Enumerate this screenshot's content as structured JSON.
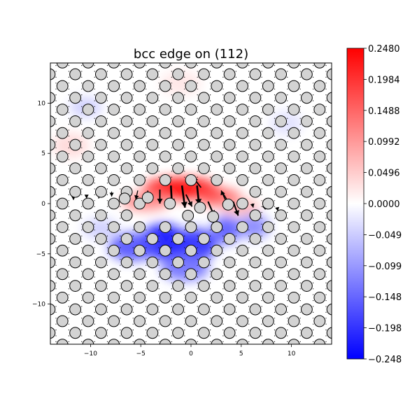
{
  "chart_data": {
    "type": "heatmap",
    "title": "bcc edge on (112)",
    "xlabel": "",
    "ylabel": "",
    "xlim": [
      -14,
      14
    ],
    "ylim": [
      -14,
      14
    ],
    "x_ticks": [
      -10,
      -5,
      0,
      5,
      10
    ],
    "y_ticks": [
      -10,
      -5,
      0,
      5,
      10
    ],
    "x_tick_labels": [
      "−10",
      "−5",
      "0",
      "5",
      "10"
    ],
    "y_tick_labels": [
      "−10",
      "−5",
      "0",
      "5",
      "10"
    ],
    "colorbar": {
      "colormap": "bwr",
      "vmin": -0.248,
      "vmax": 0.248,
      "ticks": [
        0.248,
        0.1984,
        0.1488,
        0.0992,
        0.0496,
        0.0,
        -0.0496,
        -0.0992,
        -0.1488,
        -0.1984,
        -0.248
      ],
      "tick_labels": [
        "0.2480",
        "0.1984",
        "0.1488",
        "0.0992",
        "0.0496",
        "0.0000",
        "−0.049",
        "−0.099",
        "−0.148",
        "−0.198",
        "−0.248"
      ]
    },
    "lattice": {
      "dx": 2.56,
      "dy": 1.17,
      "offset_x": 1.28,
      "atom_radius": 0.55,
      "atom_fill": "#d3d3d3",
      "atom_edge": "#000000"
    },
    "displaced_atoms": [
      {
        "x": -6.6,
        "y": 0.5
      },
      {
        "x": -4.3,
        "y": 0.6
      },
      {
        "x": -2.1,
        "y": 0.0
      },
      {
        "x": -0.3,
        "y": -1.2
      },
      {
        "x": 0.9,
        "y": -0.4
      },
      {
        "x": 2.2,
        "y": -1.3
      },
      {
        "x": 3.7,
        "y": -0.1
      }
    ],
    "strain_regions": [
      {
        "x": -1.0,
        "y": 1.5,
        "sx": 3.8,
        "sy": 1.1,
        "value": 0.248
      },
      {
        "x": 2.8,
        "y": 0.6,
        "sx": 2.2,
        "sy": 0.9,
        "value": 0.17
      },
      {
        "x": -4.5,
        "y": 0.2,
        "sx": 2.4,
        "sy": 0.9,
        "value": 0.12
      },
      {
        "x": 4.8,
        "y": -0.3,
        "sx": 2.0,
        "sy": 0.8,
        "value": 0.08
      },
      {
        "x": -2.8,
        "y": -3.8,
        "sx": 2.2,
        "sy": 1.8,
        "value": -0.23
      },
      {
        "x": 0.4,
        "y": -4.1,
        "sx": 2.2,
        "sy": 1.6,
        "value": -0.21
      },
      {
        "x": -5.8,
        "y": -4.3,
        "sx": 2.4,
        "sy": 1.4,
        "value": -0.17
      },
      {
        "x": 3.5,
        "y": -2.6,
        "sx": 1.4,
        "sy": 1.4,
        "value": -0.16
      },
      {
        "x": 6.2,
        "y": -2.3,
        "sx": 1.6,
        "sy": 1.2,
        "value": -0.12
      },
      {
        "x": -0.6,
        "y": -6.4,
        "sx": 2.4,
        "sy": 1.3,
        "value": -0.14
      },
      {
        "x": -10.5,
        "y": 9.6,
        "sx": 1.6,
        "sy": 1.0,
        "value": -0.05
      },
      {
        "x": -12.0,
        "y": 5.8,
        "sx": 1.8,
        "sy": 1.2,
        "value": 0.04
      },
      {
        "x": -1.0,
        "y": 12.0,
        "sx": 2.0,
        "sy": 1.2,
        "value": 0.025
      },
      {
        "x": 9.5,
        "y": 8.0,
        "sx": 1.6,
        "sy": 1.2,
        "value": -0.03
      },
      {
        "x": -9.0,
        "y": -2.5,
        "sx": 1.8,
        "sy": 1.0,
        "value": -0.05
      }
    ],
    "displacement_vectors": [
      {
        "x": -6.6,
        "y": 1.2,
        "u": 0.0,
        "v": -0.8
      },
      {
        "x": -5.3,
        "y": 1.3,
        "u": -0.2,
        "v": -0.9
      },
      {
        "x": -4.3,
        "y": 1.3,
        "u": 0.0,
        "v": -1.0
      },
      {
        "x": -3.1,
        "y": 1.4,
        "u": 0.0,
        "v": -1.4
      },
      {
        "x": -2.0,
        "y": 1.8,
        "u": 0.1,
        "v": -1.9
      },
      {
        "x": -0.9,
        "y": 1.8,
        "u": 0.3,
        "v": -2.2
      },
      {
        "x": -0.5,
        "y": 0.9,
        "u": 0.6,
        "v": -1.2
      },
      {
        "x": 0.6,
        "y": 1.8,
        "u": 0.2,
        "v": -1.9
      },
      {
        "x": 1.0,
        "y": 1.6,
        "u": -0.8,
        "v": 1.0
      },
      {
        "x": 1.7,
        "y": 0.2,
        "u": 0.6,
        "v": -1.4
      },
      {
        "x": 3.2,
        "y": 1.0,
        "u": 0.6,
        "v": -1.0
      },
      {
        "x": 4.2,
        "y": 0.2,
        "u": 0.5,
        "v": -1.4
      },
      {
        "x": 3.4,
        "y": 0.4,
        "u": -0.4,
        "v": 0.9
      },
      {
        "x": -7.9,
        "y": 1.2,
        "u": 0.0,
        "v": -0.5
      },
      {
        "x": -9.1,
        "y": 0.9,
        "u": -0.1,
        "v": -0.4
      },
      {
        "x": -10.4,
        "y": 0.8,
        "u": 0.0,
        "v": -0.3
      },
      {
        "x": 6.1,
        "y": 0.0,
        "u": 0.1,
        "v": -0.4
      },
      {
        "x": 7.3,
        "y": -0.3,
        "u": 0.1,
        "v": -0.3
      },
      {
        "x": -11.7,
        "y": 0.6,
        "u": 0.0,
        "v": -0.25
      },
      {
        "x": 8.6,
        "y": -0.5,
        "u": 0.05,
        "v": -0.25
      }
    ]
  }
}
